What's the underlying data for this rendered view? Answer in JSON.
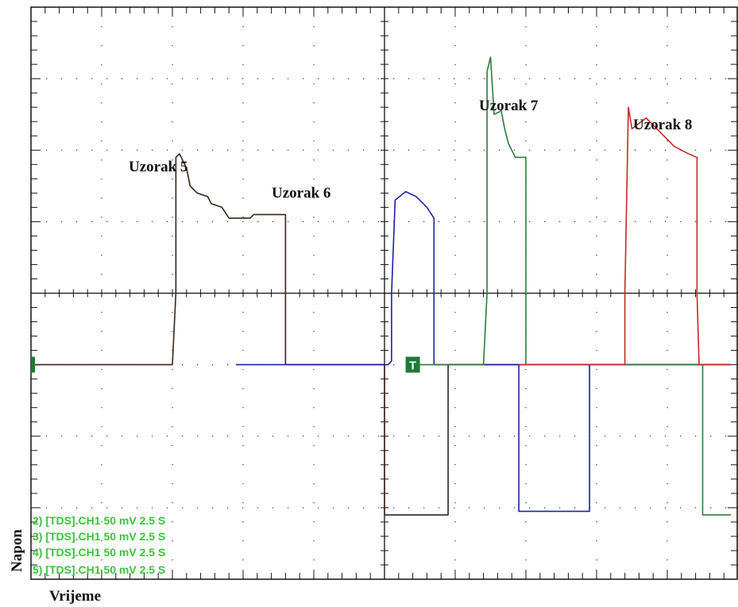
{
  "chart_data": {
    "type": "line",
    "title": "",
    "xlabel": "Vrijeme",
    "ylabel": "Napon",
    "grid": true,
    "grid_divisions": {
      "x": 10,
      "y": 8
    },
    "xlim": [
      0,
      10
    ],
    "ylim": [
      -4,
      4
    ],
    "annotations": [
      "Uzorak 5",
      "Uzorak 6",
      "Uzorak 7",
      "Uzorak 8"
    ],
    "legend_entries": [
      "2) [TDS].CH1  50 mV   2.5  S",
      "3) [TDS].CH1  50 mV   2.5  S",
      "4) [TDS].CH1  50 mV   2.5  S",
      "5) [TDS].CH1  50 mV   2.5  S"
    ],
    "legend_placement": "bottom-left",
    "markers": [
      {
        "label": "T",
        "x": 0.0,
        "color": "#1e7a38"
      },
      {
        "label": "T",
        "x": 5.4,
        "color": "#1e7a38",
        "boxed": true
      }
    ],
    "series": [
      {
        "color": "#3a2418",
        "points": [
          [
            0,
            -1
          ],
          [
            2,
            -1
          ],
          [
            2.05,
            0
          ],
          [
            2.05,
            1.9
          ],
          [
            2.1,
            1.95
          ],
          [
            2.2,
            1.75
          ],
          [
            2.25,
            1.5
          ],
          [
            2.35,
            1.4
          ],
          [
            2.5,
            1.35
          ],
          [
            2.55,
            1.25
          ],
          [
            2.7,
            1.2
          ],
          [
            2.8,
            1.05
          ],
          [
            3.1,
            1.05
          ],
          [
            3.15,
            1.1
          ],
          [
            3.6,
            1.1
          ],
          [
            3.6,
            -1
          ],
          [
            5,
            -1
          ],
          [
            5,
            -3.1
          ],
          [
            5.9,
            -3.1
          ],
          [
            5.9,
            -1
          ],
          [
            9.9,
            -1
          ]
        ]
      },
      {
        "color": "#1f1fa8",
        "points": [
          [
            2.9,
            -1
          ],
          [
            5.05,
            -1
          ],
          [
            5.1,
            -0.95
          ],
          [
            5.1,
            0
          ],
          [
            5.15,
            1.3
          ],
          [
            5.3,
            1.42
          ],
          [
            5.45,
            1.35
          ],
          [
            5.6,
            1.2
          ],
          [
            5.7,
            1.05
          ],
          [
            5.7,
            -1
          ],
          [
            6.9,
            -1
          ],
          [
            6.9,
            -3.05
          ],
          [
            7.9,
            -3.05
          ],
          [
            7.9,
            -1
          ],
          [
            9.9,
            -1
          ]
        ]
      },
      {
        "color": "#2e7b3a",
        "points": [
          [
            5.4,
            -1
          ],
          [
            6.4,
            -1
          ],
          [
            6.45,
            0
          ],
          [
            6.45,
            3.1
          ],
          [
            6.5,
            3.3
          ],
          [
            6.55,
            2.5
          ],
          [
            6.65,
            2.55
          ],
          [
            6.7,
            2.3
          ],
          [
            6.75,
            2.1
          ],
          [
            6.85,
            1.9
          ],
          [
            7.0,
            1.9
          ],
          [
            7.0,
            -1
          ],
          [
            9.5,
            -1
          ],
          [
            9.5,
            -3.1
          ],
          [
            9.9,
            -3.1
          ]
        ]
      },
      {
        "color": "#c62828",
        "points": [
          [
            6.9,
            -1
          ],
          [
            8.4,
            -1
          ],
          [
            8.4,
            0
          ],
          [
            8.45,
            2.6
          ],
          [
            8.5,
            2.3
          ],
          [
            8.7,
            2.45
          ],
          [
            8.9,
            2.25
          ],
          [
            9.1,
            2.05
          ],
          [
            9.3,
            1.95
          ],
          [
            9.42,
            1.9
          ],
          [
            9.42,
            0
          ],
          [
            9.45,
            -1
          ],
          [
            9.9,
            -1
          ]
        ]
      }
    ]
  }
}
